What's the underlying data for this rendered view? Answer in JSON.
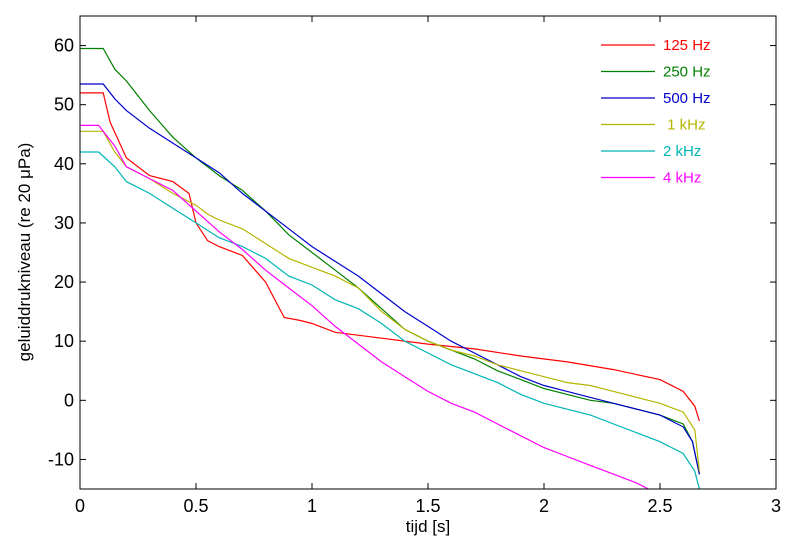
{
  "chart_data": {
    "type": "line",
    "xlabel": "tijd  [s]",
    "ylabel": "geluiddrukniveau (re 20 μPa)",
    "xlim": [
      0,
      3
    ],
    "ylim": [
      -15,
      65
    ],
    "xticks": [
      0,
      0.5,
      1,
      1.5,
      2,
      2.5,
      3
    ],
    "xtick_labels": [
      "0",
      "0.5",
      "1",
      "1.5",
      "2",
      "2.5",
      "3"
    ],
    "yticks": [
      -10,
      0,
      10,
      20,
      30,
      40,
      50,
      60
    ],
    "ytick_labels": [
      "-10",
      "0",
      "10",
      "20",
      "30",
      "40",
      "50",
      "60"
    ],
    "grid": false,
    "legend_position": "top-right",
    "series": [
      {
        "name": "125 Hz",
        "color": "#ff0000",
        "x": [
          0,
          0.1,
          0.13,
          0.2,
          0.3,
          0.4,
          0.47,
          0.5,
          0.55,
          0.6,
          0.7,
          0.8,
          0.88,
          0.95,
          1.0,
          1.1,
          1.3,
          1.5,
          1.7,
          1.9,
          2.1,
          2.3,
          2.5,
          2.6,
          2.65,
          2.67
        ],
        "y": [
          52,
          52,
          47,
          41,
          38,
          37,
          35,
          30,
          27,
          26,
          24.5,
          20,
          14,
          13.5,
          13,
          11.5,
          10.5,
          9.5,
          8.7,
          7.5,
          6.5,
          5.2,
          3.5,
          1.5,
          -1,
          -3.5
        ]
      },
      {
        "name": "250 Hz",
        "color": "#008000",
        "x": [
          0,
          0.1,
          0.15,
          0.2,
          0.3,
          0.4,
          0.5,
          0.6,
          0.7,
          0.8,
          0.9,
          1.0,
          1.1,
          1.2,
          1.3,
          1.4,
          1.5,
          1.6,
          1.7,
          1.8,
          1.9,
          2.0,
          2.1,
          2.2,
          2.3,
          2.4,
          2.5,
          2.6,
          2.64,
          2.67
        ],
        "y": [
          59.5,
          59.5,
          56,
          54,
          49,
          44.5,
          41,
          38,
          35.5,
          32,
          28,
          25,
          22,
          19,
          15.5,
          12,
          10,
          8.5,
          7,
          5,
          3.5,
          2,
          1,
          0,
          -0.5,
          -1.5,
          -2.5,
          -4,
          -7,
          -12.5
        ]
      },
      {
        "name": "500 Hz",
        "color": "#0000cc",
        "x": [
          0,
          0.1,
          0.15,
          0.2,
          0.3,
          0.4,
          0.5,
          0.6,
          0.7,
          0.8,
          0.9,
          1.0,
          1.1,
          1.2,
          1.3,
          1.4,
          1.5,
          1.6,
          1.7,
          1.8,
          1.9,
          2.0,
          2.1,
          2.2,
          2.3,
          2.4,
          2.5,
          2.6,
          2.64,
          2.67
        ],
        "y": [
          53.5,
          53.5,
          51,
          49,
          46,
          43.5,
          41,
          38.5,
          35,
          32,
          29,
          26,
          23.5,
          21,
          18,
          15,
          12.5,
          10,
          8,
          6,
          4,
          2.5,
          1.5,
          0.5,
          -0.5,
          -1.5,
          -2.5,
          -4.5,
          -7,
          -12.5
        ]
      },
      {
        "name": " 1 kHz",
        "color": "#b5b500",
        "x": [
          0,
          0.1,
          0.15,
          0.2,
          0.3,
          0.4,
          0.5,
          0.55,
          0.6,
          0.7,
          0.8,
          0.9,
          1.0,
          1.1,
          1.2,
          1.3,
          1.4,
          1.5,
          1.6,
          1.7,
          1.8,
          1.9,
          2.0,
          2.1,
          2.2,
          2.3,
          2.4,
          2.5,
          2.6,
          2.65,
          2.67
        ],
        "y": [
          45.5,
          45.5,
          42,
          39.5,
          37.5,
          35,
          33,
          31.5,
          30.5,
          29,
          26.5,
          24,
          22.5,
          21,
          19,
          15,
          12,
          10,
          8.5,
          7.5,
          6,
          5,
          4,
          3,
          2.5,
          1.5,
          0.5,
          -0.5,
          -2,
          -5,
          -12
        ]
      },
      {
        "name": "2 kHz",
        "color": "#00b5b5",
        "x": [
          0,
          0.08,
          0.15,
          0.2,
          0.3,
          0.4,
          0.5,
          0.6,
          0.7,
          0.8,
          0.9,
          1.0,
          1.1,
          1.2,
          1.3,
          1.4,
          1.5,
          1.6,
          1.7,
          1.8,
          1.9,
          2.0,
          2.1,
          2.2,
          2.3,
          2.4,
          2.5,
          2.6,
          2.65,
          2.67
        ],
        "y": [
          42,
          42,
          39.5,
          37,
          35,
          32.5,
          30,
          27.5,
          26,
          24,
          21,
          19.5,
          17,
          15.5,
          13,
          10,
          8,
          6,
          4.5,
          3,
          1,
          -0.5,
          -1.5,
          -2.5,
          -4,
          -5.5,
          -7,
          -9,
          -12,
          -15
        ]
      },
      {
        "name": "4 kHz",
        "color": "#ff00ff",
        "x": [
          0,
          0.08,
          0.15,
          0.2,
          0.3,
          0.4,
          0.5,
          0.6,
          0.7,
          0.8,
          0.9,
          1.0,
          1.1,
          1.2,
          1.3,
          1.4,
          1.5,
          1.6,
          1.7,
          1.8,
          1.9,
          2.0,
          2.1,
          2.2,
          2.3,
          2.4,
          2.45
        ],
        "y": [
          46.5,
          46.5,
          43,
          39.5,
          37.5,
          35.5,
          32,
          28.5,
          25.5,
          22,
          19,
          16,
          12.5,
          9.5,
          6.5,
          4,
          1.5,
          -0.5,
          -2,
          -4,
          -6,
          -8,
          -9.5,
          -11,
          -12.5,
          -14,
          -15
        ]
      }
    ]
  }
}
